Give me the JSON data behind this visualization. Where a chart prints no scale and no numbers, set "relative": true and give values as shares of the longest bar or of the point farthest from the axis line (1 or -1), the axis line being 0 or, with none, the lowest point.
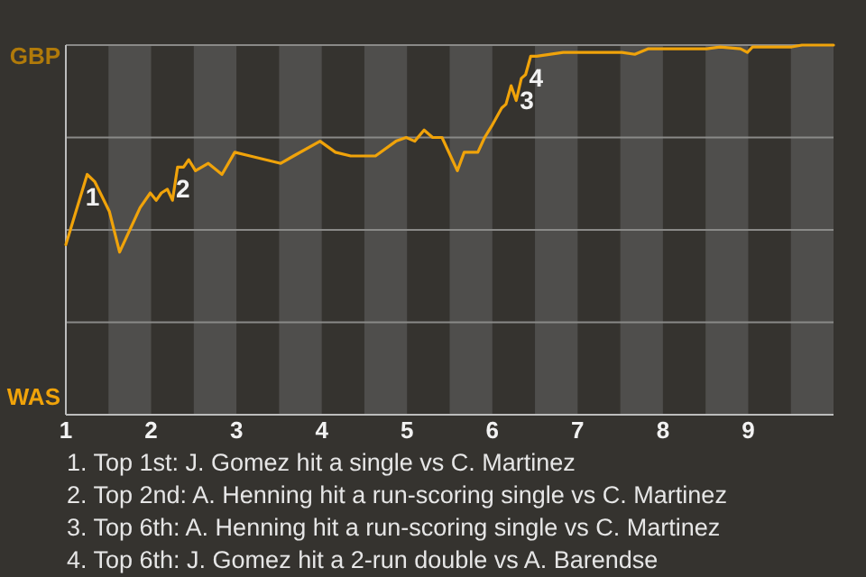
{
  "chart_data": {
    "type": "line",
    "relative": true,
    "x": [
      1,
      1.25,
      1.34,
      1.51,
      1.63,
      1.87,
      1.99,
      2.06,
      2.12,
      2.19,
      2.25,
      2.31,
      2.38,
      2.44,
      2.52,
      2.67,
      2.83,
      2.98,
      3.16,
      3.52,
      3.67,
      3.98,
      4.16,
      4.34,
      4.63,
      4.87,
      4.99,
      5.09,
      5.2,
      5.3,
      5.41,
      5.51,
      5.59,
      5.67,
      5.83,
      5.91,
      5.99,
      6.11,
      6.16,
      6.22,
      6.28,
      6.34,
      6.39,
      6.45,
      6.52,
      6.83,
      7.52,
      7.67,
      7.83,
      8.34,
      8.51,
      8.67,
      8.91,
      8.99,
      9.05,
      9.51,
      9.63,
      10
    ],
    "series": [
      {
        "color": "#f0a30a",
        "values": [
          0.46,
          0.65,
          0.63,
          0.55,
          0.44,
          0.56,
          0.6,
          0.58,
          0.6,
          0.61,
          0.58,
          0.67,
          0.67,
          0.69,
          0.66,
          0.68,
          0.65,
          0.71,
          0.7,
          0.68,
          0.7,
          0.74,
          0.71,
          0.7,
          0.7,
          0.74,
          0.75,
          0.74,
          0.77,
          0.75,
          0.75,
          0.7,
          0.66,
          0.71,
          0.71,
          0.75,
          0.78,
          0.83,
          0.84,
          0.89,
          0.85,
          0.91,
          0.92,
          0.97,
          0.97,
          0.98,
          0.98,
          0.975,
          0.99,
          0.99,
          0.99,
          0.995,
          0.99,
          0.98,
          0.995,
          0.995,
          1,
          1
        ]
      }
    ],
    "xlim": [
      1,
      10
    ],
    "xticks": [
      1,
      2,
      3,
      4,
      5,
      6,
      7,
      8,
      9
    ],
    "marker": "none",
    "line_style": "solid",
    "ref_lines": [
      {
        "axis": "y",
        "value": 0.25,
        "color": "#8a8a88"
      },
      {
        "axis": "y",
        "value": 0.5,
        "color": "#8a8a88"
      },
      {
        "axis": "y",
        "value": 0.75,
        "color": "#8a8a88"
      },
      {
        "axis": "y",
        "value": 1,
        "color": "#8a8a88"
      }
    ],
    "bands": [
      {
        "axis": "x",
        "from": 1.5,
        "to": 2,
        "color": "#4f4e4c"
      },
      {
        "axis": "x",
        "from": 2.5,
        "to": 3,
        "color": "#4f4e4c"
      },
      {
        "axis": "x",
        "from": 3.5,
        "to": 4,
        "color": "#4f4e4c"
      },
      {
        "axis": "x",
        "from": 4.5,
        "to": 5,
        "color": "#4f4e4c"
      },
      {
        "axis": "x",
        "from": 5.5,
        "to": 6,
        "color": "#4f4e4c"
      },
      {
        "axis": "x",
        "from": 6.5,
        "to": 7,
        "color": "#4f4e4c"
      },
      {
        "axis": "x",
        "from": 7.5,
        "to": 8,
        "color": "#4f4e4c"
      },
      {
        "axis": "x",
        "from": 8.5,
        "to": 9,
        "color": "#4f4e4c"
      },
      {
        "axis": "x",
        "from": 9.5,
        "to": 10,
        "color": "#4f4e4c"
      }
    ],
    "annotations": [
      "GBP",
      "WAS",
      {
        "text": "1",
        "x": 1.25,
        "y": 0.65
      },
      {
        "text": "2",
        "x": 2.31,
        "y": 0.67
      },
      {
        "text": "3",
        "x": 6.34,
        "y": 0.91
      },
      {
        "text": "4",
        "x": 6.45,
        "y": 0.97
      },
      "1. Top 1st: J. Gomez hit a single vs C. Martinez",
      "2. Top 2nd: A. Henning hit a run-scoring single vs C. Martinez",
      "3. Top 6th: A. Henning hit a run-scoring single vs C. Martinez",
      "4. Top 6th: J. Gomez hit a 2-run double vs A. Barendse"
    ]
  }
}
